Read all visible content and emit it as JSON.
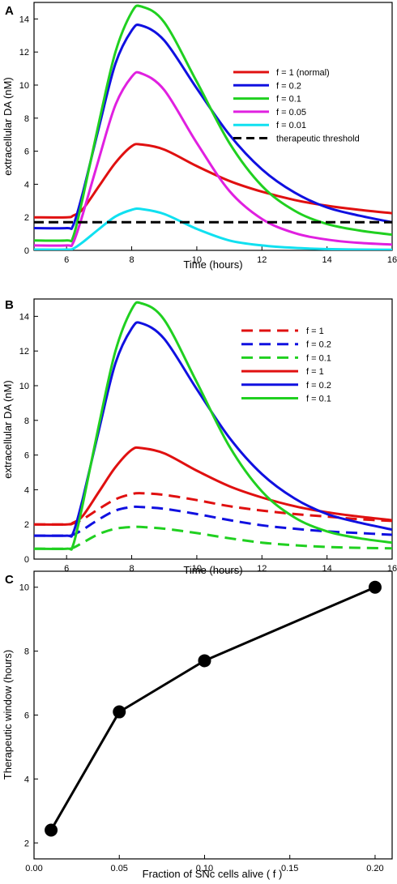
{
  "chart_data": [
    {
      "panel": "A",
      "type": "line",
      "xlabel": "Time (hours)",
      "ylabel": "extracellular DA (nM)",
      "xlim": [
        5,
        16
      ],
      "ylim": [
        0,
        15
      ],
      "xticks": [
        "6",
        "8",
        "10",
        "12",
        "14",
        "16"
      ],
      "yticks": [
        "0",
        "2",
        "4",
        "6",
        "8",
        "10",
        "12",
        "14"
      ],
      "legend": "right",
      "series": [
        {
          "name": "f = 1 (normal)",
          "color": "#e01010",
          "dash": "solid",
          "x": [
            5,
            6,
            6.2,
            6.5,
            7,
            7.5,
            8,
            8.3,
            9,
            10,
            11,
            12,
            13,
            14,
            15,
            16
          ],
          "y": [
            2.0,
            2.0,
            2.1,
            2.5,
            3.9,
            5.3,
            6.3,
            6.4,
            6.1,
            5.1,
            4.2,
            3.55,
            3.05,
            2.7,
            2.45,
            2.25
          ]
        },
        {
          "name": "f = 0.2",
          "color": "#1010e0",
          "dash": "solid",
          "x": [
            5,
            6,
            6.2,
            6.5,
            7,
            7.5,
            8,
            8.3,
            9,
            10,
            11,
            12,
            13,
            14,
            15,
            16
          ],
          "y": [
            1.35,
            1.35,
            1.5,
            3.5,
            7.5,
            11.3,
            13.3,
            13.6,
            12.7,
            9.8,
            7.0,
            4.9,
            3.5,
            2.6,
            2.1,
            1.7
          ]
        },
        {
          "name": "f = 0.1",
          "color": "#20d020",
          "dash": "solid",
          "x": [
            5,
            6,
            6.2,
            6.5,
            7,
            7.5,
            8,
            8.3,
            9,
            10,
            11,
            12,
            13,
            14,
            15,
            16
          ],
          "y": [
            0.6,
            0.6,
            0.8,
            3.2,
            7.8,
            12.0,
            14.4,
            14.75,
            13.8,
            10.2,
            6.5,
            3.9,
            2.4,
            1.6,
            1.2,
            0.95
          ]
        },
        {
          "name": "f = 0.05",
          "color": "#e020e0",
          "dash": "solid",
          "x": [
            5,
            6,
            6.2,
            6.5,
            7,
            7.5,
            8,
            8.3,
            9,
            10,
            11,
            12,
            13,
            14,
            15,
            16
          ],
          "y": [
            0.3,
            0.3,
            0.45,
            2.2,
            5.6,
            8.8,
            10.5,
            10.7,
            9.7,
            6.5,
            3.6,
            1.9,
            1.05,
            0.65,
            0.45,
            0.35
          ]
        },
        {
          "name": "f = 0.01",
          "color": "#10e0f0",
          "dash": "solid",
          "x": [
            5,
            6,
            6.2,
            6.5,
            7,
            7.5,
            8,
            8.3,
            9,
            10,
            11,
            12,
            13,
            14,
            15,
            16
          ],
          "y": [
            0.05,
            0.05,
            0.1,
            0.5,
            1.3,
            2.05,
            2.45,
            2.5,
            2.2,
            1.3,
            0.6,
            0.3,
            0.15,
            0.08,
            0.05,
            0.04
          ]
        },
        {
          "name": "therapeutic threshold",
          "color": "#000000",
          "dash": "dashed",
          "x": [
            5,
            16
          ],
          "y": [
            1.7,
            1.7
          ]
        }
      ]
    },
    {
      "panel": "B",
      "type": "line",
      "xlabel": "Time (hours)",
      "ylabel": "extracellular DA (nM)",
      "xlim": [
        5,
        16
      ],
      "ylim": [
        0,
        15
      ],
      "xticks": [
        "6",
        "8",
        "10",
        "12",
        "14",
        "16"
      ],
      "yticks": [
        "0",
        "2",
        "4",
        "6",
        "8",
        "10",
        "12",
        "14"
      ],
      "legend": "top-right",
      "series": [
        {
          "name": "f = 1",
          "color": "#e01010",
          "dash": "dashed",
          "x": [
            5,
            6,
            6.2,
            6.5,
            7,
            7.5,
            8,
            8.3,
            9,
            10,
            11,
            12,
            13,
            14,
            15,
            16
          ],
          "y": [
            2.0,
            2.0,
            2.05,
            2.3,
            2.9,
            3.45,
            3.75,
            3.8,
            3.7,
            3.4,
            3.05,
            2.8,
            2.6,
            2.45,
            2.3,
            2.2
          ]
        },
        {
          "name": "f = 0.2",
          "color": "#1010e0",
          "dash": "dashed",
          "x": [
            5,
            6,
            6.2,
            6.5,
            7,
            7.5,
            8,
            8.3,
            9,
            10,
            11,
            12,
            13,
            14,
            15,
            16
          ],
          "y": [
            1.35,
            1.35,
            1.4,
            1.7,
            2.3,
            2.8,
            3.0,
            3.0,
            2.9,
            2.6,
            2.25,
            1.95,
            1.75,
            1.6,
            1.5,
            1.4
          ]
        },
        {
          "name": "f = 0.1",
          "color": "#20d020",
          "dash": "dashed",
          "x": [
            5,
            6,
            6.2,
            6.5,
            7,
            7.5,
            8,
            8.3,
            9,
            10,
            11,
            12,
            13,
            14,
            15,
            16
          ],
          "y": [
            0.6,
            0.6,
            0.65,
            0.95,
            1.45,
            1.75,
            1.85,
            1.85,
            1.75,
            1.5,
            1.2,
            0.95,
            0.8,
            0.7,
            0.65,
            0.62
          ]
        },
        {
          "name": "f = 1",
          "color": "#e01010",
          "dash": "solid",
          "x": [
            5,
            6,
            6.2,
            6.5,
            7,
            7.5,
            8,
            8.3,
            9,
            10,
            11,
            12,
            13,
            14,
            15,
            16
          ],
          "y": [
            2.0,
            2.0,
            2.1,
            2.5,
            3.9,
            5.3,
            6.3,
            6.4,
            6.1,
            5.1,
            4.2,
            3.55,
            3.05,
            2.7,
            2.45,
            2.25
          ]
        },
        {
          "name": "f = 0.2",
          "color": "#1010e0",
          "dash": "solid",
          "x": [
            5,
            6,
            6.2,
            6.5,
            7,
            7.5,
            8,
            8.3,
            9,
            10,
            11,
            12,
            13,
            14,
            15,
            16
          ],
          "y": [
            1.35,
            1.35,
            1.5,
            3.5,
            7.5,
            11.3,
            13.3,
            13.6,
            12.7,
            9.8,
            7.0,
            4.9,
            3.5,
            2.6,
            2.1,
            1.7
          ]
        },
        {
          "name": "f = 0.1",
          "color": "#20d020",
          "dash": "solid",
          "x": [
            5,
            6,
            6.2,
            6.5,
            7,
            7.5,
            8,
            8.3,
            9,
            10,
            11,
            12,
            13,
            14,
            15,
            16
          ],
          "y": [
            0.6,
            0.6,
            0.8,
            3.2,
            7.8,
            12.0,
            14.4,
            14.75,
            13.8,
            10.2,
            6.5,
            3.9,
            2.4,
            1.6,
            1.2,
            0.95
          ]
        }
      ]
    },
    {
      "panel": "C",
      "type": "line",
      "xlabel": "Fraction of SNc cells alive ( f )",
      "ylabel": "Therapeutic window (hours)",
      "xlim": [
        0.0,
        0.21
      ],
      "ylim": [
        1.5,
        10.5
      ],
      "xticks": [
        "0.00",
        "0.05",
        "0.10",
        "0.15",
        "0.20"
      ],
      "yticks": [
        "2",
        "4",
        "6",
        "8",
        "10"
      ],
      "series": [
        {
          "color": "#000000",
          "dash": "solid",
          "markers": true,
          "x": [
            0.01,
            0.05,
            0.1,
            0.2
          ],
          "y": [
            2.4,
            6.1,
            7.7,
            10.0
          ]
        }
      ]
    }
  ]
}
